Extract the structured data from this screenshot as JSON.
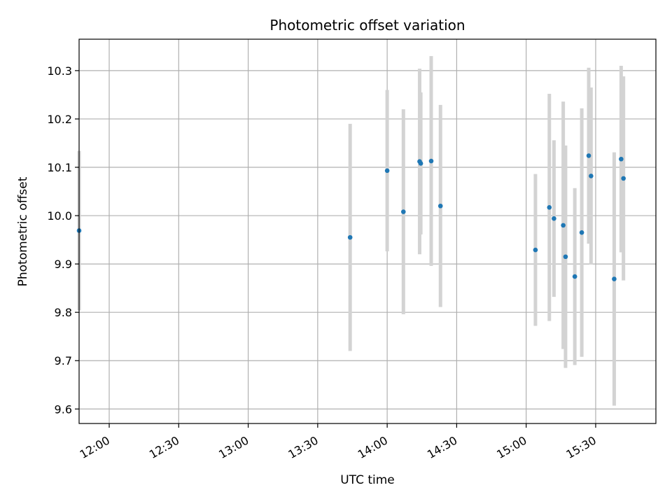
{
  "chart_data": {
    "type": "scatter",
    "title": "Photometric offset variation",
    "xlabel": "UTC time",
    "ylabel": "Photometric offset",
    "xlim": [
      "11:47",
      "15:56"
    ],
    "ylim": [
      9.57,
      10.365
    ],
    "grid": true,
    "x_ticks": [
      "12:00",
      "12:30",
      "13:00",
      "13:30",
      "14:00",
      "14:30",
      "15:00",
      "15:30"
    ],
    "y_ticks": [
      9.6,
      9.7,
      9.8,
      9.9,
      10.0,
      10.1,
      10.2,
      10.3
    ],
    "y_tick_labels": [
      "9.6",
      "9.7",
      "9.8",
      "9.9",
      "10.0",
      "10.1",
      "10.2",
      "10.3"
    ],
    "point_color": "#1f77b4",
    "errorbar_color": "#d3d3d3",
    "points": [
      {
        "x": "11:47",
        "y": 9.969,
        "yerr": 0.165
      },
      {
        "x": "13:44",
        "y": 9.955,
        "yerr": 0.235
      },
      {
        "x": "14:00",
        "y": 10.093,
        "yerr": 0.167
      },
      {
        "x": "14:07",
        "y": 10.008,
        "yerr": 0.212
      },
      {
        "x": "14:14",
        "y": 10.112,
        "yerr": 0.192
      },
      {
        "x": "14:14.5",
        "y": 10.108,
        "yerr": 0.147
      },
      {
        "x": "14:19",
        "y": 10.113,
        "yerr": 0.217
      },
      {
        "x": "14:23",
        "y": 10.02,
        "yerr": 0.209
      },
      {
        "x": "15:04",
        "y": 9.929,
        "yerr": 0.157
      },
      {
        "x": "15:10",
        "y": 10.017,
        "yerr": 0.235
      },
      {
        "x": "15:12",
        "y": 9.994,
        "yerr": 0.162
      },
      {
        "x": "15:16",
        "y": 9.98,
        "yerr": 0.256
      },
      {
        "x": "15:17",
        "y": 9.915,
        "yerr": 0.23
      },
      {
        "x": "15:21",
        "y": 9.874,
        "yerr": 0.183
      },
      {
        "x": "15:24",
        "y": 9.965,
        "yerr": 0.257
      },
      {
        "x": "15:27",
        "y": 10.124,
        "yerr": 0.182
      },
      {
        "x": "15:28",
        "y": 10.082,
        "yerr": 0.183
      },
      {
        "x": "15:38",
        "y": 9.869,
        "yerr": 0.262
      },
      {
        "x": "15:41",
        "y": 10.117,
        "yerr": 0.193
      },
      {
        "x": "15:42",
        "y": 10.077,
        "yerr": 0.211
      }
    ]
  }
}
